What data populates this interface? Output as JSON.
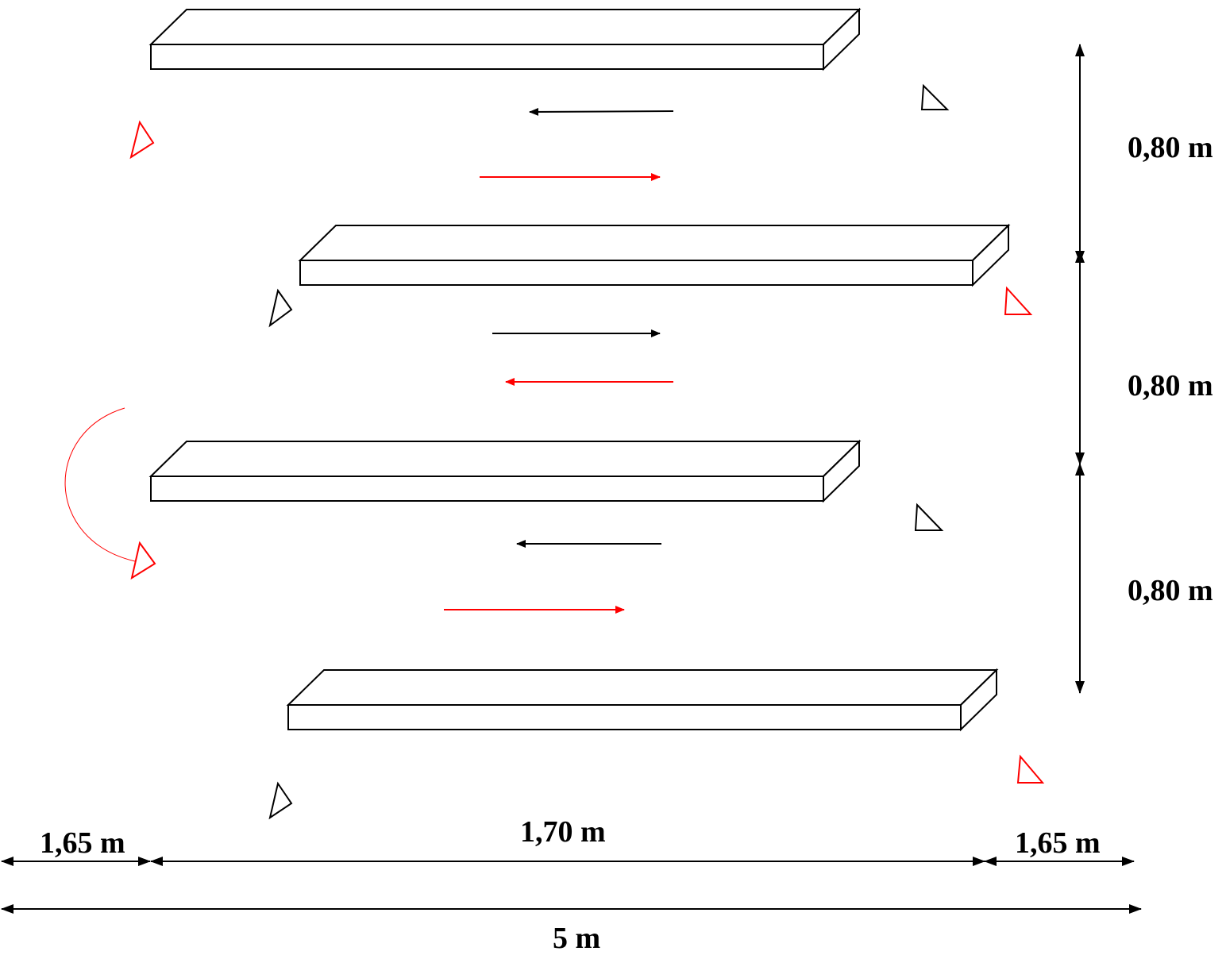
{
  "colors": {
    "primary": "#000000",
    "accent": "#ff0000"
  },
  "dimensions": {
    "vertical_spacing_1": "0,80 m",
    "vertical_spacing_2": "0,80 m",
    "vertical_spacing_3": "0,80 m",
    "left_offset": "1,65 m",
    "board_length": "1,70 m",
    "right_offset": "1,65 m",
    "total_length": "5 m"
  },
  "diagram": {
    "boards": 4,
    "arrows_black": [
      "left",
      "right",
      "left"
    ],
    "arrows_red": [
      "right",
      "left",
      "right"
    ]
  }
}
